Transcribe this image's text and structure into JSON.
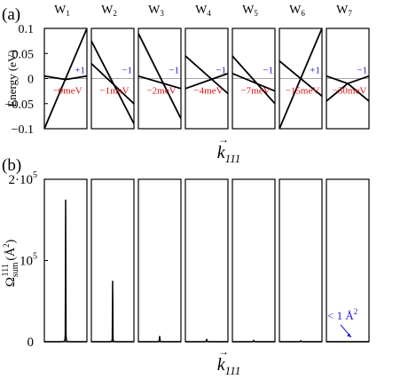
{
  "chart_data": [
    {
      "type": "line",
      "panel_label": "(a)",
      "ylabel": "Energy (eV)",
      "xlabel": "k_111",
      "ylim": [
        -0.1,
        0.1
      ],
      "yticks": [
        {
          "value": 0.1,
          "label": "0.1"
        },
        {
          "value": 0.05,
          "label": "0.05"
        },
        {
          "value": 0,
          "label": "0"
        },
        {
          "value": -0.05,
          "label": "−0.05"
        },
        {
          "value": -0.1,
          "label": "−0.1"
        }
      ],
      "xlim": [
        0,
        1
      ],
      "zero_line": true,
      "subplots": [
        {
          "title_main": "W",
          "title_sub": "1",
          "chirality": "+1",
          "gap": "−0meV",
          "series": [
            {
              "x": [
                0,
                1
              ],
              "y": [
                -0.1,
                0.1
              ]
            },
            {
              "x": [
                0,
                0.5,
                1
              ],
              "y": [
                0.005,
                -0.002,
                0.005
              ]
            }
          ]
        },
        {
          "title_main": "W",
          "title_sub": "2",
          "chirality": "−1",
          "gap": "−1meV",
          "series": [
            {
              "x": [
                0,
                1
              ],
              "y": [
                0.075,
                -0.09
              ]
            },
            {
              "x": [
                0,
                1
              ],
              "y": [
                0.03,
                -0.05
              ]
            }
          ]
        },
        {
          "title_main": "W",
          "title_sub": "3",
          "chirality": "−1",
          "gap": "−2meV",
          "series": [
            {
              "x": [
                0,
                1
              ],
              "y": [
                0.09,
                -0.08
              ]
            },
            {
              "x": [
                0,
                1
              ],
              "y": [
                0.005,
                -0.02
              ]
            }
          ]
        },
        {
          "title_main": "W",
          "title_sub": "4",
          "chirality": "−1",
          "gap": "−4meV",
          "series": [
            {
              "x": [
                0,
                1
              ],
              "y": [
                0.045,
                -0.03
              ]
            },
            {
              "x": [
                0,
                1
              ],
              "y": [
                -0.02,
                0.01
              ]
            }
          ]
        },
        {
          "title_main": "W",
          "title_sub": "5",
          "chirality": "−1",
          "gap": "−7meV",
          "series": [
            {
              "x": [
                0,
                1
              ],
              "y": [
                0.045,
                -0.05
              ]
            },
            {
              "x": [
                0,
                1
              ],
              "y": [
                0.01,
                -0.025
              ]
            }
          ]
        },
        {
          "title_main": "W",
          "title_sub": "6",
          "chirality": "+1",
          "gap": "−15meV",
          "series": [
            {
              "x": [
                0,
                1
              ],
              "y": [
                -0.1,
                0.1
              ]
            },
            {
              "x": [
                0,
                1
              ],
              "y": [
                0.035,
                -0.035
              ]
            }
          ]
        },
        {
          "title_main": "W",
          "title_sub": "7",
          "chirality": "−1",
          "gap": "−30meV",
          "series": [
            {
              "x": [
                0,
                0.5,
                1
              ],
              "y": [
                -0.045,
                -0.01,
                -0.045
              ]
            },
            {
              "x": [
                0,
                0.5,
                1
              ],
              "y": [
                0.005,
                -0.01,
                0.005
              ]
            }
          ]
        }
      ]
    },
    {
      "type": "line",
      "panel_label": "(b)",
      "ylabel": "Ω sum 111 (Å²)",
      "xlabel": "k_111",
      "ylim": [
        0,
        200000
      ],
      "yticks": [
        {
          "value": 200000,
          "label": "2·10",
          "sup": "5"
        },
        {
          "value": 100000,
          "label": "10",
          "sup": "5"
        },
        {
          "value": 0,
          "label": "0"
        }
      ],
      "xlim": [
        0,
        1
      ],
      "annotation": {
        "text": "< 1 Å",
        "sup": "2",
        "subplot": 7
      },
      "subplots": [
        {
          "peak_x": 0.5,
          "peak_y": 175000,
          "width": 0.012
        },
        {
          "peak_x": 0.5,
          "peak_y": 75000,
          "width": 0.012
        },
        {
          "peak_x": 0.5,
          "peak_y": 7000,
          "width": 0.03
        },
        {
          "peak_x": 0.5,
          "peak_y": 2500,
          "width": 0.06
        },
        {
          "peak_x": 0.5,
          "peak_y": 1500,
          "width": 0.06
        },
        {
          "peak_x": 0.5,
          "peak_y": 1000,
          "width": 0.08
        },
        {
          "peak_x": 0.5,
          "peak_y": 0,
          "width": 0.1
        }
      ]
    }
  ]
}
